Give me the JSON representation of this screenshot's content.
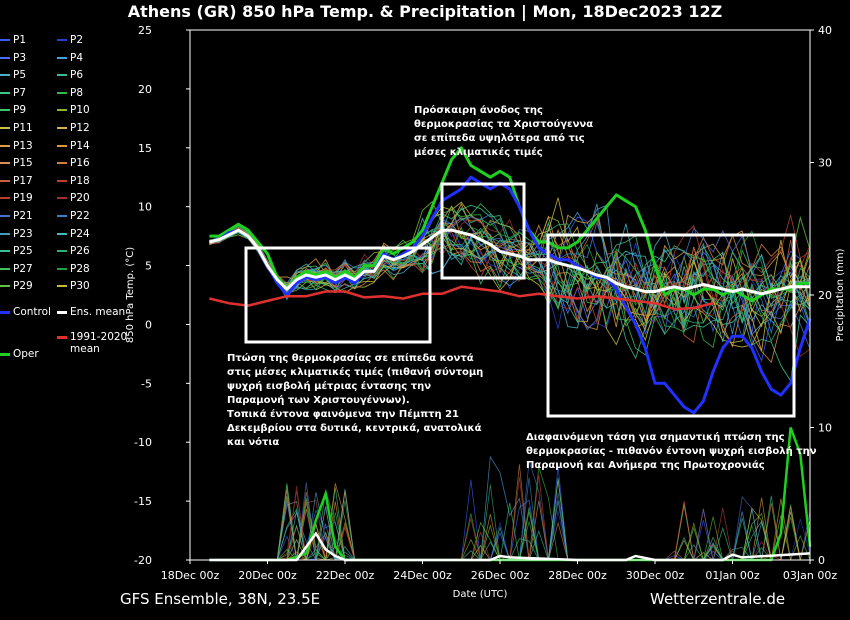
{
  "title": "Athens  (GR)  850 hPa Temp. & Precipitation | Mon, 18Dec2023 12Z",
  "footer": {
    "left": "GFS Ensemble, 38N, 23.5E",
    "right": "Wetterzentrale.de"
  },
  "legend": [
    {
      "label": "P1",
      "color": "#3b5bff"
    },
    {
      "label": "P2",
      "color": "#2a3fc8"
    },
    {
      "label": "P3",
      "color": "#4a6cff"
    },
    {
      "label": "P4",
      "color": "#4aa0d8"
    },
    {
      "label": "P5",
      "color": "#45b0c8"
    },
    {
      "label": "P6",
      "color": "#3cb89a"
    },
    {
      "label": "P7",
      "color": "#3cc88a"
    },
    {
      "label": "P8",
      "color": "#36b848"
    },
    {
      "label": "P9",
      "color": "#3cc870"
    },
    {
      "label": "P10",
      "color": "#88b830"
    },
    {
      "label": "P11",
      "color": "#c8c040"
    },
    {
      "label": "P12",
      "color": "#d8b050"
    },
    {
      "label": "P13",
      "color": "#d8a040"
    },
    {
      "label": "P14",
      "color": "#d89840"
    },
    {
      "label": "P15",
      "color": "#d89050"
    },
    {
      "label": "P16",
      "color": "#d08040"
    },
    {
      "label": "P17",
      "color": "#c86040"
    },
    {
      "label": "P18",
      "color": "#c04030"
    },
    {
      "label": "P19",
      "color": "#b84030"
    },
    {
      "label": "P20",
      "color": "#a03030"
    },
    {
      "label": "P21",
      "color": "#4a70c8"
    },
    {
      "label": "P22",
      "color": "#3c80c0"
    },
    {
      "label": "P23",
      "color": "#40a0c0"
    },
    {
      "label": "P24",
      "color": "#48b8c0"
    },
    {
      "label": "P25",
      "color": "#38c098"
    },
    {
      "label": "P26",
      "color": "#30b070"
    },
    {
      "label": "P27",
      "color": "#40c060"
    },
    {
      "label": "P28",
      "color": "#20a040"
    },
    {
      "label": "P29",
      "color": "#60c040"
    },
    {
      "label": "P30",
      "color": "#c8b840"
    },
    {
      "label": "Control",
      "color": "#2030ff"
    },
    {
      "label": "Ens. mean",
      "color": "#ffffff"
    },
    {
      "label": "1991-2020 mean",
      "color": "#e03030"
    },
    {
      "label": "Oper",
      "color": "#20d020"
    }
  ],
  "annotations": {
    "a1": [
      "Πρόσκαιρη άνοδος της",
      "θερμοκρασίας τα Χριστούγεννα",
      "σε επίπεδα υψηλότερα από τις",
      "μέσες κλιματικές τιμές"
    ],
    "a2": [
      "Πτώση της θερμοκρασίας σε επίπεδα κοντά",
      "στις μέσες κλιματικές τιμές (πιθανή σύντομη",
      "ψυχρή εισβολή μέτριας έντασης την",
      "Παραμονή των Χριστουγέννων).",
      "Τοπικά έντονα φαινόμενα την Πέμπτη 21",
      "Δεκεμβρίου στα δυτικά, κεντρικά, ανατολικά",
      "και νότια"
    ],
    "a3": [
      "Διαφαινόμενη τάση για σημαντική πτώση της",
      "θερμοκρασίας - πιθανόν έντονη ψυχρή εισβολή την",
      "Παραμονή και Ανήμερα της Πρωτοχρονιάς"
    ]
  },
  "chart_data": {
    "type": "line",
    "xlabel": "Date (UTC)",
    "ylabel": "850 hPa Temp. (°C)",
    "y2label": "Precipitation (mm)",
    "ylim": [
      -20,
      25
    ],
    "y2lim": [
      0,
      40
    ],
    "xlim_hours": [
      0,
      384
    ],
    "x_tick_labels": [
      "18Dec 00z",
      "20Dec 00z",
      "22Dec 00z",
      "24Dec 00z",
      "26Dec 00z",
      "28Dec 00z",
      "30Dec 00z",
      "01Jan 00z",
      "03Jan 00z"
    ],
    "x_tick_hours": [
      0,
      48,
      96,
      144,
      192,
      240,
      288,
      336,
      384
    ],
    "y_ticks": [
      25,
      20,
      15,
      10,
      5,
      0,
      -5,
      -10,
      -15,
      -20
    ],
    "y2_ticks": [
      40,
      30,
      20,
      10,
      0
    ],
    "grid": false,
    "series": [
      {
        "name": "Oper",
        "color": "#20d020",
        "x": [
          12,
          18,
          24,
          30,
          36,
          42,
          48,
          54,
          60,
          66,
          72,
          78,
          84,
          90,
          96,
          102,
          108,
          114,
          120,
          126,
          132,
          138,
          144,
          150,
          156,
          162,
          168,
          174,
          180,
          186,
          192,
          198,
          204,
          210,
          216,
          222,
          228,
          234,
          240,
          246,
          252,
          258,
          264,
          270,
          276,
          282,
          288,
          294,
          300,
          306,
          312,
          318,
          324,
          330,
          336,
          342,
          348,
          354,
          360,
          366,
          372,
          378,
          384
        ],
        "y": [
          7.5,
          7.5,
          8,
          8.5,
          8,
          7,
          6,
          4,
          3,
          4,
          4.5,
          4.2,
          4.5,
          4,
          4.5,
          4,
          5,
          5,
          6.5,
          6,
          6.5,
          7,
          8,
          10,
          12,
          14,
          15,
          13.5,
          13,
          12.5,
          13,
          12.5,
          10,
          8,
          7,
          7,
          6.5,
          6.5,
          7,
          8,
          9,
          10,
          11,
          10.5,
          10,
          8,
          5,
          2.5,
          3,
          3,
          2.5,
          3,
          3,
          2.5,
          3,
          2.5,
          2,
          2.5,
          3,
          3,
          3,
          3.5,
          3.5
        ]
      },
      {
        "name": "Control",
        "color": "#2030ff",
        "x": [
          12,
          18,
          24,
          30,
          36,
          42,
          48,
          54,
          60,
          66,
          72,
          78,
          84,
          90,
          96,
          102,
          108,
          114,
          120,
          126,
          132,
          138,
          144,
          150,
          156,
          162,
          168,
          174,
          180,
          186,
          192,
          198,
          204,
          210,
          216,
          222,
          228,
          234,
          240,
          246,
          252,
          258,
          264,
          270,
          276,
          282,
          288,
          294,
          300,
          306,
          312,
          318,
          324,
          330,
          336,
          342,
          348,
          354,
          360,
          366,
          372,
          378,
          384
        ],
        "y": [
          7,
          7.2,
          7.8,
          8,
          7.5,
          6.5,
          5,
          3.5,
          2.5,
          3.5,
          4,
          3.8,
          4,
          3.5,
          4,
          3.5,
          4.5,
          4.5,
          6,
          5.5,
          6,
          6.5,
          7.5,
          9,
          10.5,
          11,
          11.5,
          12.5,
          12,
          11.5,
          12,
          11.5,
          10,
          8,
          6.5,
          6,
          5.5,
          5.5,
          5,
          4.5,
          4,
          4,
          3,
          1.5,
          0,
          -2,
          -5,
          -5,
          -6,
          -7,
          -7.5,
          -6.5,
          -4,
          -2,
          -1,
          -1,
          -2,
          -4,
          -5.5,
          -6,
          -5,
          -2,
          0.5
        ]
      },
      {
        "name": "Ens. mean",
        "color": "#ffffff",
        "x": [
          12,
          18,
          24,
          30,
          36,
          42,
          48,
          54,
          60,
          66,
          72,
          78,
          84,
          90,
          96,
          102,
          108,
          114,
          120,
          126,
          132,
          138,
          144,
          150,
          156,
          162,
          168,
          174,
          180,
          186,
          192,
          198,
          204,
          210,
          216,
          222,
          228,
          234,
          240,
          246,
          252,
          258,
          264,
          270,
          276,
          282,
          288,
          294,
          300,
          306,
          312,
          318,
          324,
          330,
          336,
          342,
          348,
          354,
          360,
          366,
          372,
          378,
          384
        ],
        "y": [
          7,
          7.2,
          7.6,
          8,
          7.5,
          6.5,
          5,
          3.8,
          3,
          3.8,
          4.2,
          4,
          4.2,
          3.8,
          4.2,
          3.8,
          4.5,
          4.5,
          5.8,
          5.5,
          5.8,
          6.2,
          6.8,
          7.4,
          8,
          8,
          7.8,
          7.6,
          7.2,
          6.8,
          6.2,
          6,
          5.8,
          5.5,
          5.5,
          5.5,
          5.2,
          5,
          4.8,
          4.5,
          4.2,
          4,
          3.5,
          3.2,
          3,
          2.8,
          2.8,
          3,
          3.2,
          3,
          3.2,
          3.4,
          3.2,
          3,
          2.8,
          3,
          2.8,
          2.6,
          2.8,
          3,
          3.2,
          3.2,
          3.2
        ]
      },
      {
        "name": "1991-2020 mean",
        "color": "#e03030",
        "x": [
          12,
          24,
          36,
          48,
          60,
          72,
          84,
          96,
          108,
          120,
          132,
          144,
          156,
          168,
          180,
          192,
          204,
          216,
          228,
          240,
          252,
          264,
          276,
          288,
          300,
          312,
          324
        ],
        "y": [
          2.2,
          1.8,
          1.6,
          2,
          2.4,
          2.4,
          2.8,
          2.8,
          2.3,
          2.4,
          2.2,
          2.6,
          2.6,
          3.2,
          3,
          2.8,
          2.4,
          2.6,
          2.4,
          2.2,
          2.4,
          2.2,
          2,
          1.8,
          1.3,
          1.4,
          1.8
        ]
      }
    ],
    "precip_series": [
      {
        "name": "Oper",
        "color": "#20d020",
        "x": [
          12,
          60,
          72,
          78,
          84,
          90,
          96,
          192,
          240,
          336,
          360,
          366,
          372,
          378,
          384
        ],
        "y": [
          0,
          0,
          0.5,
          3,
          5,
          1,
          0,
          0,
          0,
          0,
          0,
          2,
          10,
          8,
          1
        ]
      },
      {
        "name": "Ens. mean",
        "color": "#ffffff",
        "x": [
          12,
          66,
          72,
          78,
          84,
          90,
          96,
          186,
          192,
          198,
          240,
          270,
          276,
          288,
          330,
          336,
          342,
          384
        ],
        "y": [
          0,
          0,
          1,
          2,
          0.8,
          0.3,
          0,
          0,
          0.3,
          0.2,
          0,
          0,
          0.3,
          0,
          0,
          0.4,
          0.2,
          0.5
        ]
      }
    ]
  }
}
